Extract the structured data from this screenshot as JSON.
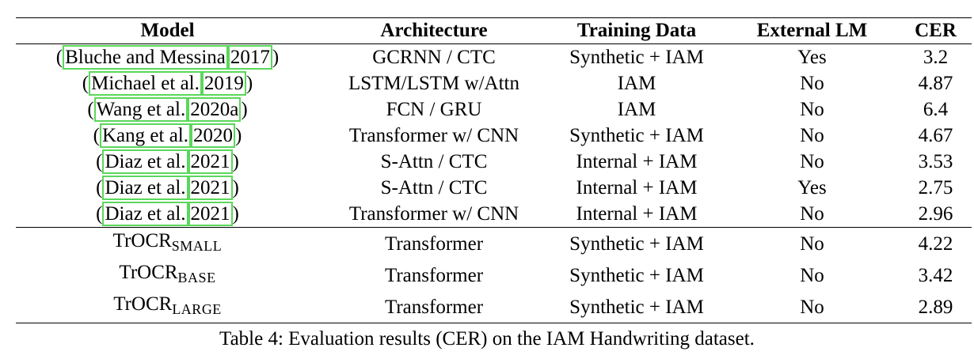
{
  "table": {
    "headers": [
      "Model",
      "Architecture",
      "Training Data",
      "External LM",
      "CER"
    ],
    "group1": [
      {
        "cite_open": "(",
        "cite_author": "Bluche and Messina",
        "cite_year": "2017",
        "cite_close": ")",
        "architecture": "GCRNN / CTC",
        "training_data": "Synthetic + IAM",
        "external_lm": "Yes",
        "cer": "3.2"
      },
      {
        "cite_open": "(",
        "cite_author": "Michael et al.",
        "cite_year": "2019",
        "cite_close": ")",
        "architecture": "LSTM/LSTM w/Attn",
        "training_data": "IAM",
        "external_lm": "No",
        "cer": "4.87"
      },
      {
        "cite_open": "(",
        "cite_author": "Wang et al.",
        "cite_year": "2020a",
        "cite_close": ")",
        "architecture": "FCN / GRU",
        "training_data": "IAM",
        "external_lm": "No",
        "cer": "6.4"
      },
      {
        "cite_open": "(",
        "cite_author": "Kang et al.",
        "cite_year": "2020",
        "cite_close": ")",
        "architecture": "Transformer w/ CNN",
        "training_data": "Synthetic + IAM",
        "external_lm": "No",
        "cer": "4.67"
      },
      {
        "cite_open": "(",
        "cite_author": "Diaz et al.",
        "cite_year": "2021",
        "cite_close": ")",
        "architecture": "S-Attn / CTC",
        "training_data": "Internal + IAM",
        "external_lm": "No",
        "cer": "3.53"
      },
      {
        "cite_open": "(",
        "cite_author": "Diaz et al.",
        "cite_year": "2021",
        "cite_close": ")",
        "architecture": "S-Attn / CTC",
        "training_data": "Internal + IAM",
        "external_lm": "Yes",
        "cer": "2.75"
      },
      {
        "cite_open": "(",
        "cite_author": "Diaz et al.",
        "cite_year": "2021",
        "cite_close": ")",
        "architecture": "Transformer w/ CNN",
        "training_data": "Internal + IAM",
        "external_lm": "No",
        "cer": "2.96"
      }
    ],
    "group2": [
      {
        "model_base": "TrOCR",
        "model_sub": "SMALL",
        "architecture": "Transformer",
        "training_data": "Synthetic + IAM",
        "external_lm": "No",
        "cer": "4.22"
      },
      {
        "model_base": "TrOCR",
        "model_sub": "BASE",
        "architecture": "Transformer",
        "training_data": "Synthetic + IAM",
        "external_lm": "No",
        "cer": "3.42"
      },
      {
        "model_base": "TrOCR",
        "model_sub": "LARGE",
        "architecture": "Transformer",
        "training_data": "Synthetic + IAM",
        "external_lm": "No",
        "cer": "2.89"
      }
    ]
  },
  "caption": "Table 4: Evaluation results (CER) on the IAM Handwriting dataset."
}
